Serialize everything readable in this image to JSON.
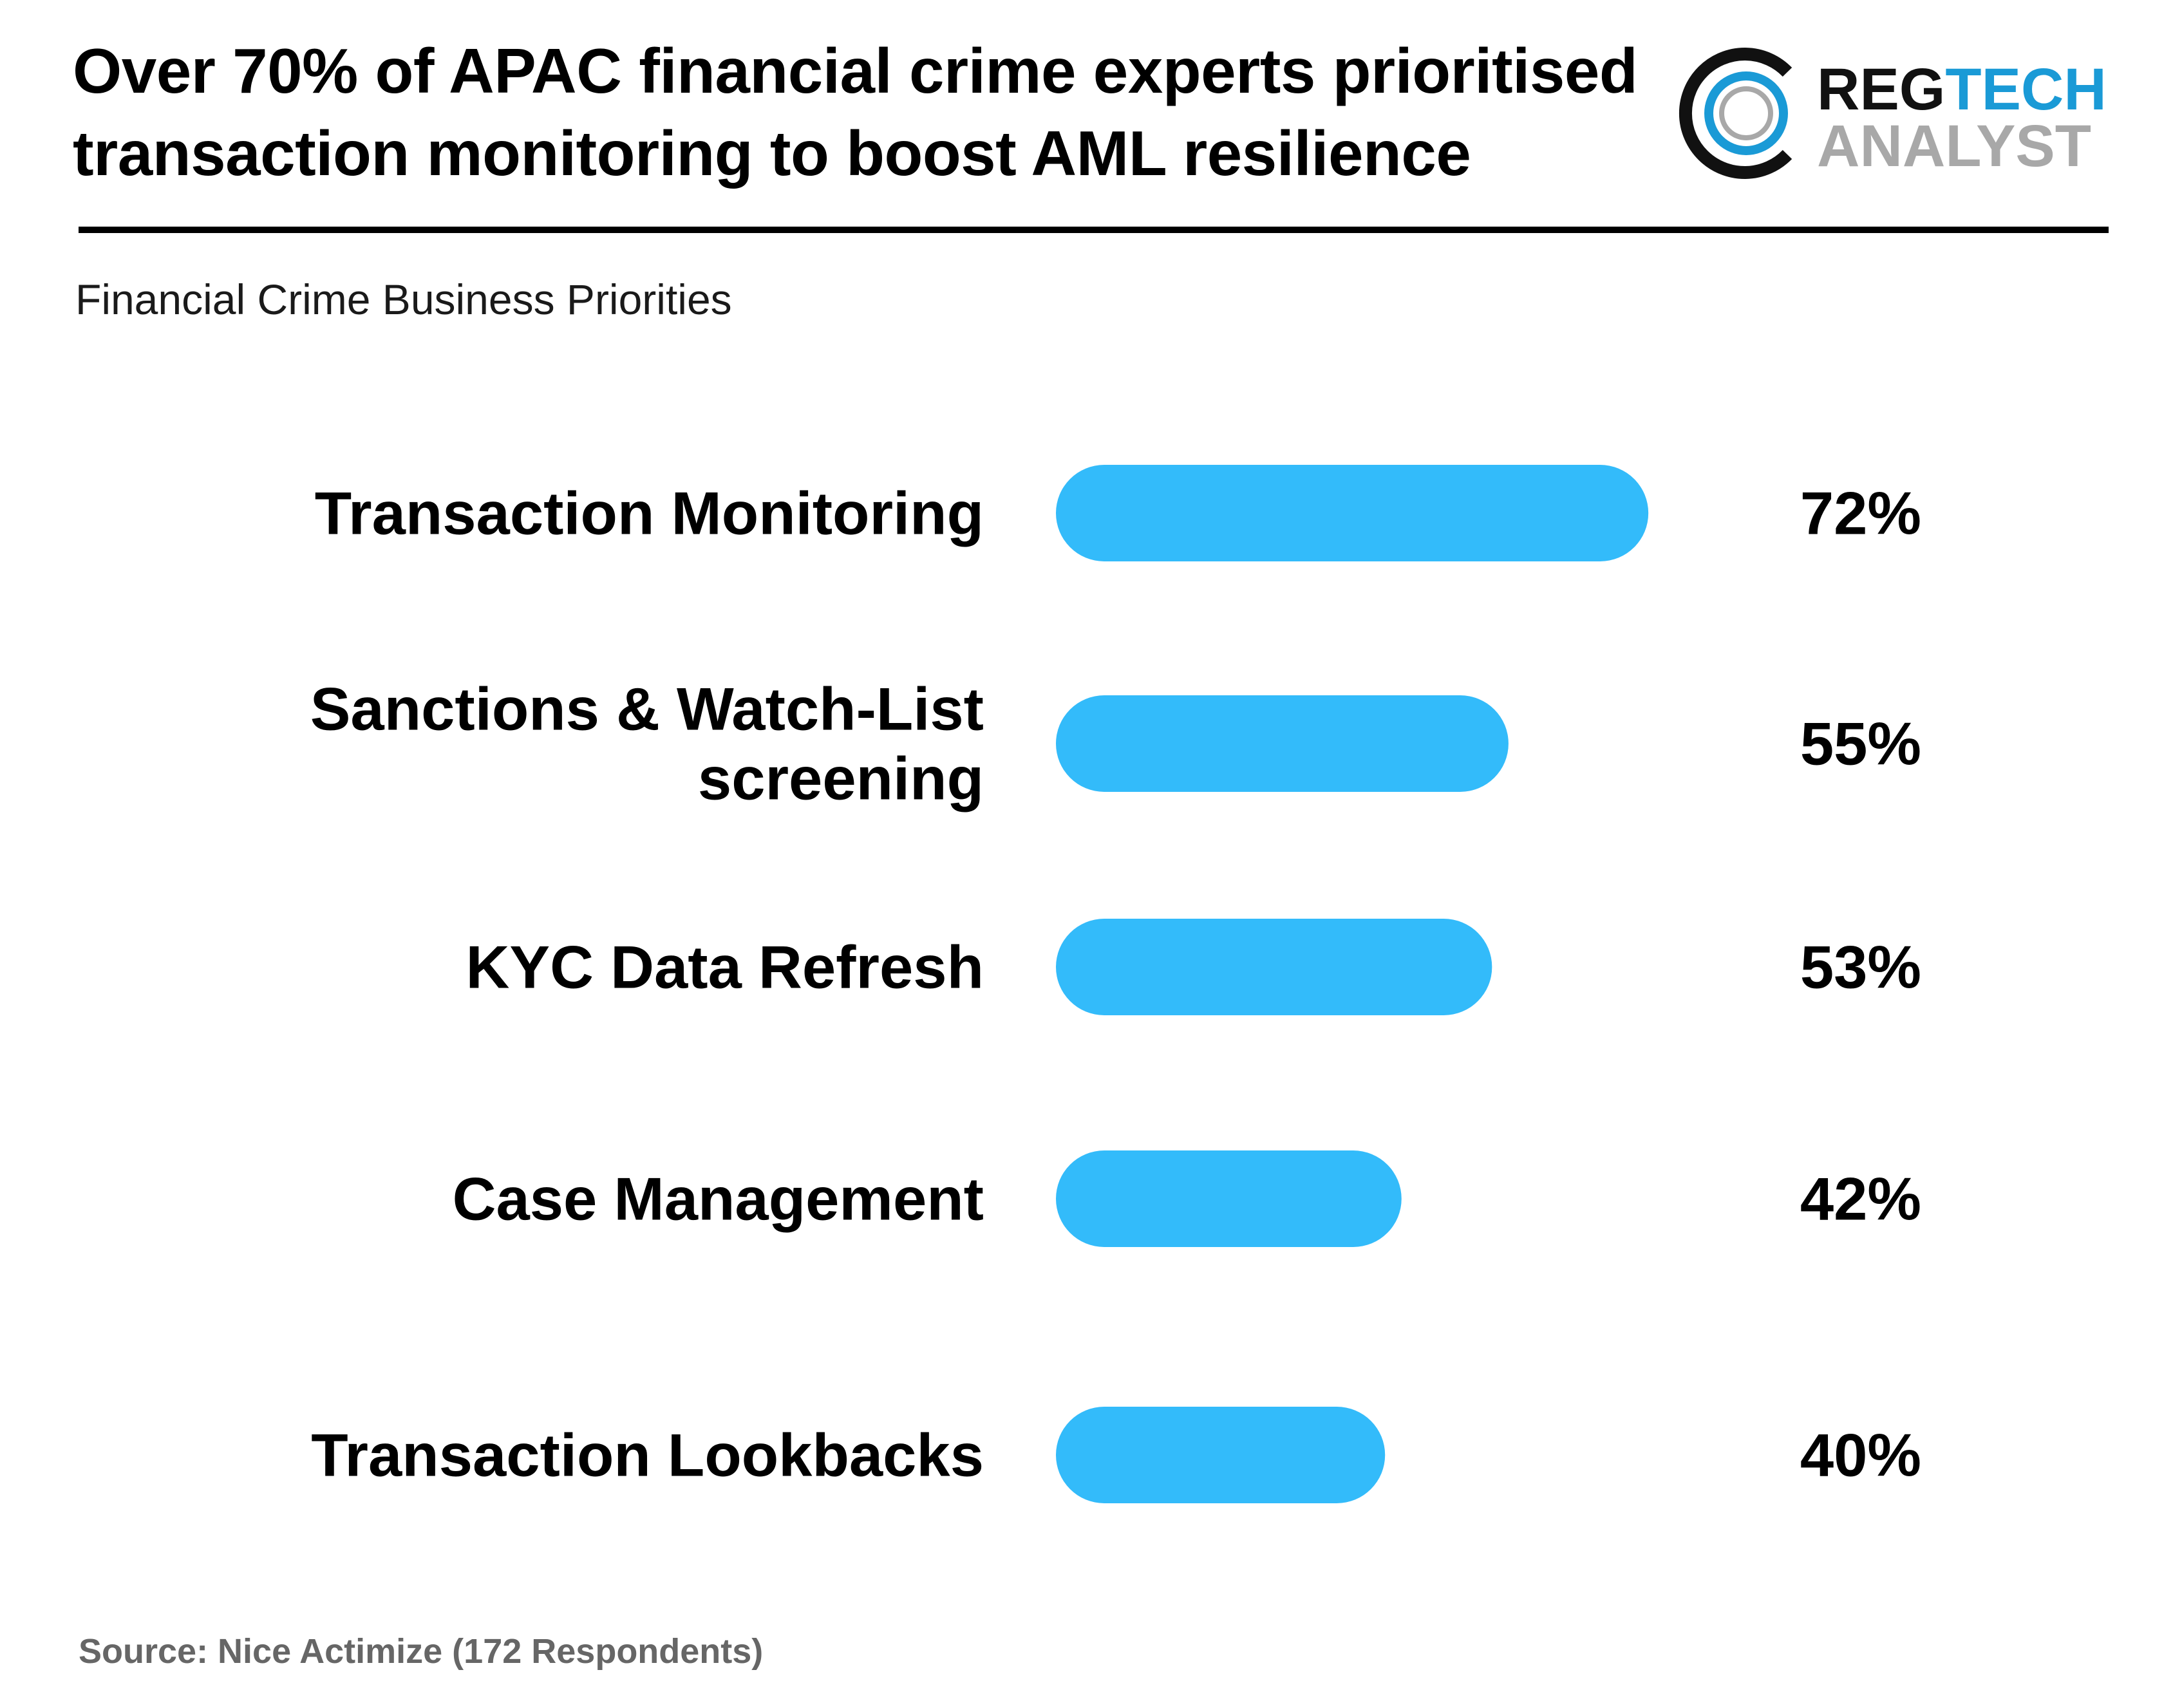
{
  "headline": "Over 70% of APAC financial crime experts prioritised transaction monitoring to boost AML resilience",
  "logo": {
    "line1_part1": "REG",
    "line1_part2": "TECH",
    "line2": "ANALYST",
    "icon": "ring-logo-icon",
    "colors": {
      "dark": "#111111",
      "blue": "#1a9ad6",
      "gray": "#a8a8a8"
    }
  },
  "subtitle": "Financial Crime Business Priorities",
  "source": "Source: Nice Actimize (172 Respondents)",
  "colors": {
    "bar": "#33bbfa",
    "text": "#000000",
    "source": "#666666"
  },
  "chart_data": {
    "type": "bar",
    "orientation": "horizontal",
    "title": "Financial Crime Business Priorities",
    "categories": [
      [
        "Transaction Monitoring"
      ],
      [
        "Sanctions & Watch-List",
        "screening"
      ],
      [
        "KYC Data Refresh"
      ],
      [
        "Case Management"
      ],
      [
        "Transaction Lookbacks"
      ]
    ],
    "values": [
      72,
      55,
      53,
      42,
      40
    ],
    "value_labels": [
      "72%",
      "55%",
      "53%",
      "42%",
      "40%"
    ],
    "unit": "%",
    "grid": false,
    "legend": "none"
  }
}
